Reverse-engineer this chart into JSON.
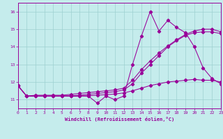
{
  "xlabel": "Windchill (Refroidissement éolien,°C)",
  "bg_color": "#c5ecec",
  "grid_color": "#9dd0d0",
  "line_color": "#990099",
  "xlim": [
    0,
    23
  ],
  "ylim": [
    10.5,
    16.5
  ],
  "xticks": [
    0,
    1,
    2,
    3,
    4,
    5,
    6,
    7,
    8,
    9,
    10,
    11,
    12,
    13,
    14,
    15,
    16,
    17,
    18,
    19,
    20,
    21,
    22,
    23
  ],
  "yticks": [
    11,
    12,
    13,
    14,
    15,
    16
  ],
  "s1_x": [
    0,
    1,
    2,
    3,
    4,
    5,
    6,
    7,
    8,
    9,
    10,
    11,
    12,
    13,
    14,
    15,
    16,
    17,
    18,
    19,
    20,
    21,
    22,
    23
  ],
  "s1_y": [
    11.8,
    11.2,
    11.2,
    11.2,
    11.2,
    11.2,
    11.2,
    11.2,
    11.2,
    10.8,
    11.2,
    11.0,
    11.2,
    13.0,
    14.6,
    16.0,
    14.9,
    15.5,
    15.1,
    14.8,
    14.0,
    12.8,
    12.2,
    11.9
  ],
  "s2_x": [
    0,
    1,
    2,
    3,
    4,
    5,
    6,
    7,
    8,
    9,
    10,
    11,
    12,
    13,
    14,
    15,
    16,
    17,
    18,
    19,
    20,
    21,
    22,
    23
  ],
  "s2_y": [
    11.8,
    11.2,
    11.25,
    11.25,
    11.25,
    11.25,
    11.3,
    11.35,
    11.4,
    11.45,
    11.5,
    11.55,
    11.65,
    12.1,
    12.7,
    13.2,
    13.65,
    14.05,
    14.4,
    14.7,
    14.9,
    15.0,
    15.0,
    14.85
  ],
  "s3_x": [
    0,
    1,
    2,
    3,
    4,
    5,
    6,
    7,
    8,
    9,
    10,
    11,
    12,
    13,
    14,
    15,
    16,
    17,
    18,
    19,
    20,
    21,
    22,
    23
  ],
  "s3_y": [
    11.8,
    11.2,
    11.2,
    11.2,
    11.2,
    11.2,
    11.22,
    11.25,
    11.3,
    11.35,
    11.4,
    11.45,
    11.55,
    11.9,
    12.5,
    13.0,
    13.5,
    14.0,
    14.35,
    14.65,
    14.8,
    14.85,
    14.85,
    14.75
  ],
  "s4_x": [
    0,
    1,
    2,
    3,
    4,
    5,
    6,
    7,
    8,
    9,
    10,
    11,
    12,
    13,
    14,
    15,
    16,
    17,
    18,
    19,
    20,
    21,
    22,
    23
  ],
  "s4_y": [
    11.8,
    11.2,
    11.2,
    11.2,
    11.2,
    11.2,
    11.2,
    11.2,
    11.22,
    11.25,
    11.28,
    11.32,
    11.38,
    11.5,
    11.65,
    11.8,
    11.9,
    12.0,
    12.05,
    12.1,
    12.15,
    12.1,
    12.1,
    12.0
  ]
}
